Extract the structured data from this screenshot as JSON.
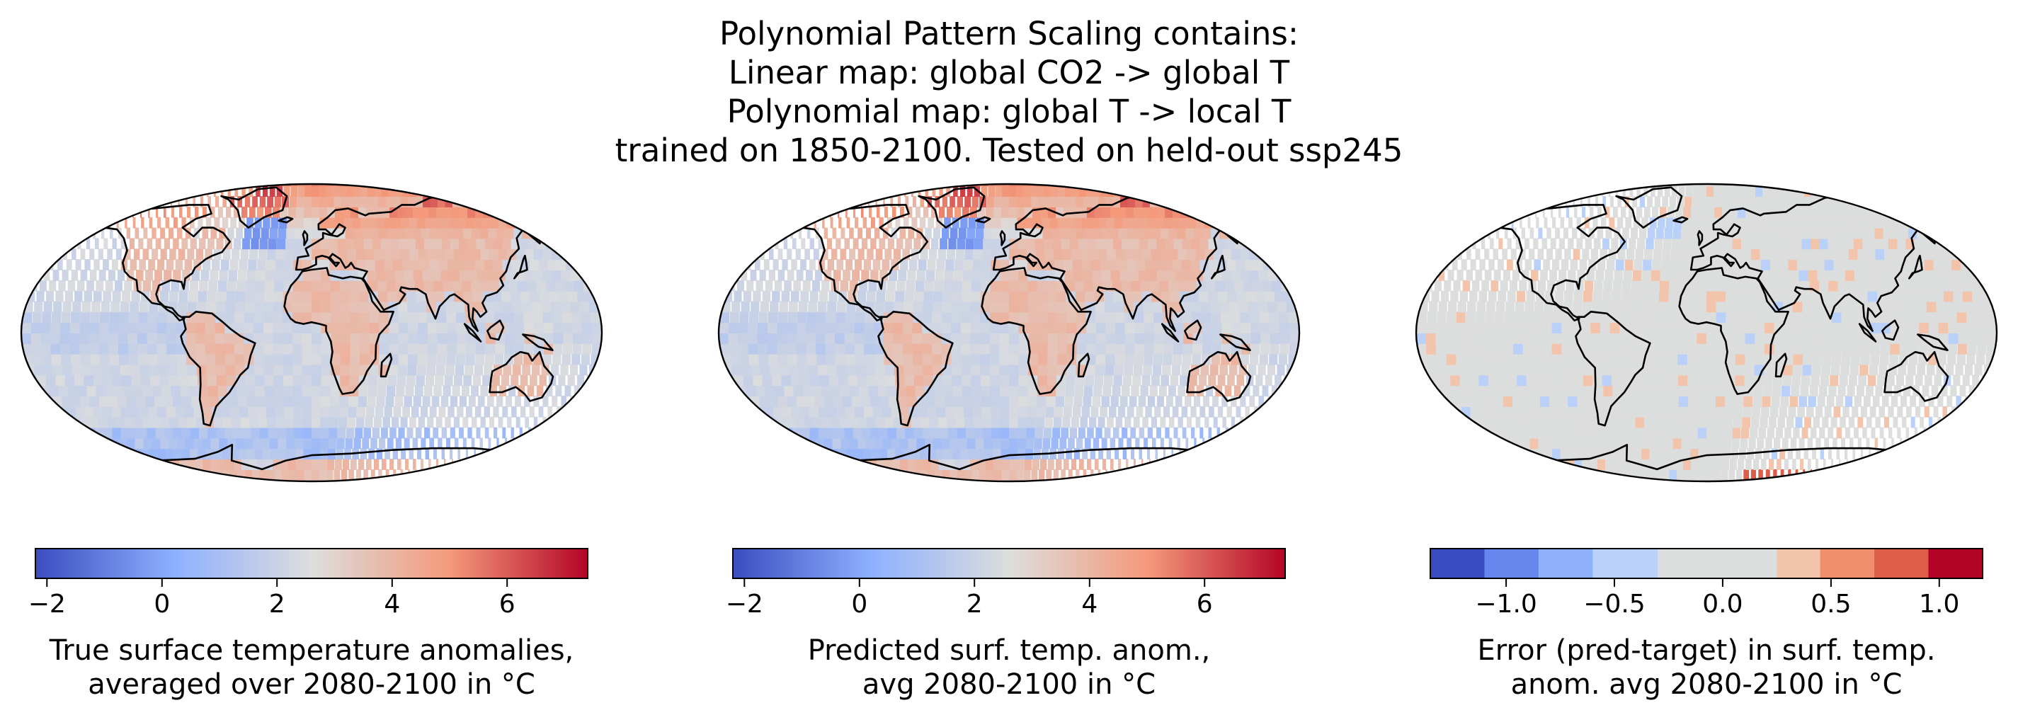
{
  "title_lines": [
    "Polynomial Pattern Scaling contains:",
    "Linear map: global CO2 -> global T",
    "Polynomial map: global T -> local T",
    "trained on 1850-2100. Tested on held-out ssp245"
  ],
  "panels": [
    {
      "id": "true",
      "field": "true-anomaly",
      "caption_lines": [
        "True surface temperature anomalies,",
        "averaged over 2080-2100 in °C"
      ],
      "colorbar": {
        "type": "continuous",
        "colormap": "coolwarm",
        "vmin": -2.2,
        "vmax": 7.4,
        "ticks": [
          -2,
          0,
          2,
          4,
          6
        ],
        "tick_labels": [
          "−2",
          "0",
          "2",
          "4",
          "6"
        ]
      }
    },
    {
      "id": "pred",
      "field": "predicted-anomaly",
      "caption_lines": [
        "Predicted surf. temp. anom.,",
        "avg 2080-2100 in °C"
      ],
      "colorbar": {
        "type": "continuous",
        "colormap": "coolwarm",
        "vmin": -2.2,
        "vmax": 7.4,
        "ticks": [
          -2,
          0,
          2,
          4,
          6
        ],
        "tick_labels": [
          "−2",
          "0",
          "2",
          "4",
          "6"
        ]
      }
    },
    {
      "id": "error",
      "field": "error",
      "caption_lines": [
        "Error (pred-target) in surf. temp.",
        "anom. avg 2080-2100 in °C"
      ],
      "colorbar": {
        "type": "discrete",
        "colormap": "coolwarm",
        "bounds": [
          -1.35,
          -1.25,
          -0.75,
          -0.25,
          0.25,
          0.75,
          1.25
        ],
        "edges": [
          -1.35,
          -1.1,
          -0.85,
          -0.6,
          -0.3,
          0.25,
          0.45,
          0.7,
          0.95,
          1.2
        ],
        "colors": [
          "#3b4cc0",
          "#6688ee",
          "#8fb1fe",
          "#b9d0f9",
          "#dcdddd",
          "#f2c4ab",
          "#f08f6e",
          "#dc5d4a",
          "#b40426"
        ],
        "ticks": [
          -1.0,
          -0.5,
          0.0,
          0.5,
          1.0
        ],
        "tick_labels": [
          "−1.0",
          "−0.5",
          "0.0",
          "0.5",
          "1.0"
        ]
      }
    }
  ]
}
